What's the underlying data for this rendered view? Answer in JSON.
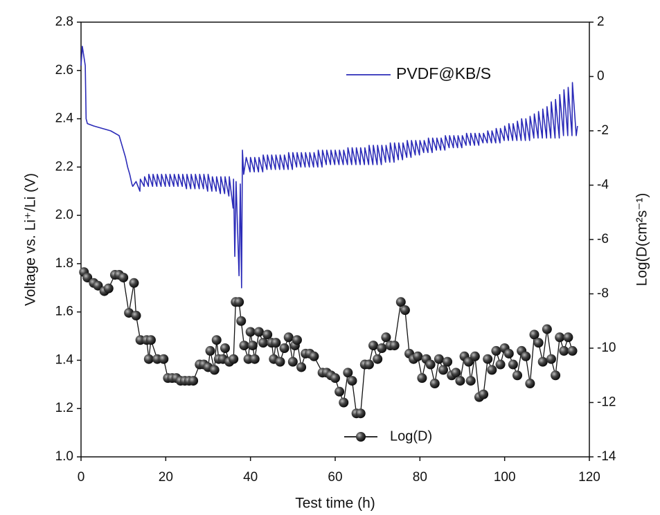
{
  "chart_data": {
    "type": "line",
    "xlabel": "Test time (h)",
    "ylabel": "Voltage vs. Li⁺/Li (V)",
    "y2label": "Log(D(cm²s⁻¹)",
    "xlim": [
      0,
      120
    ],
    "xticks": [
      0,
      20,
      40,
      60,
      80,
      100,
      120
    ],
    "ylim": [
      1,
      2.8
    ],
    "yticks": [
      {
        "value": 1,
        "label": "1.0"
      },
      1.2,
      1.4,
      1.6,
      1.8,
      {
        "value": 2,
        "label": "2.0"
      },
      2.2,
      2.4,
      2.6,
      2.8
    ],
    "y2lim": [
      -14,
      2
    ],
    "y2ticks": [
      2,
      0,
      -2,
      -4,
      -6,
      -8,
      -10,
      -12,
      -14
    ],
    "grid": false,
    "series": [
      {
        "name": "PVDF@KB/S",
        "color": "#2b2bb8",
        "marker": "none",
        "x": [
          0,
          0.3,
          1.0,
          1.2,
          1.5,
          3,
          5,
          7,
          9,
          9.5,
          10.5,
          11,
          11.5,
          12,
          12.2,
          13,
          13.9,
          14,
          14.9,
          15,
          15.9,
          16,
          16.9,
          17,
          17.9,
          18,
          18.9,
          19,
          19.9,
          20,
          20.9,
          21,
          21.9,
          22,
          22.9,
          23,
          23.9,
          24,
          24.9,
          25,
          25.9,
          26,
          26.9,
          27,
          27.9,
          28,
          28.9,
          29,
          29.9,
          30,
          30.9,
          31,
          31.9,
          32,
          32.9,
          33,
          33.9,
          34,
          34.9,
          35,
          35.9,
          36,
          36.3,
          36.6,
          37.3,
          37.6,
          37.9,
          38.1,
          38.4,
          39,
          39.9,
          40,
          40.9,
          41,
          41.9,
          42,
          42.9,
          43,
          43.9,
          44,
          44.9,
          45,
          45.9,
          46,
          46.9,
          47,
          47.9,
          48,
          48.9,
          49,
          49.9,
          50,
          50.9,
          51,
          51.9,
          52,
          52.9,
          53,
          53.9,
          54,
          54.9,
          55,
          55.9,
          56,
          56.9,
          57,
          57.9,
          58,
          58.9,
          59,
          59.9,
          60,
          60.9,
          61,
          61.9,
          62,
          62.9,
          63,
          63.9,
          64,
          64.9,
          65,
          65.9,
          66,
          66.9,
          67,
          67.9,
          68,
          68.9,
          69,
          69.9,
          70,
          70.9,
          71,
          71.9,
          72,
          72.9,
          73,
          73.9,
          74,
          74.9,
          75,
          75.9,
          76,
          76.9,
          77,
          77.9,
          78,
          78.9,
          79,
          79.9,
          80,
          80.9,
          81,
          81.9,
          82,
          82.9,
          83,
          83.9,
          84,
          84.9,
          85,
          85.9,
          86,
          86.9,
          87,
          87.9,
          88,
          88.9,
          89,
          89.9,
          90,
          90.9,
          91,
          91.9,
          92,
          92.9,
          93,
          93.9,
          94,
          94.9,
          95,
          95.9,
          96,
          96.9,
          97,
          97.9,
          98,
          98.9,
          99,
          99.9,
          100,
          100.9,
          101,
          101.9,
          102,
          102.9,
          103,
          103.9,
          104,
          104.9,
          105,
          105.9,
          106,
          106.9,
          107,
          107.9,
          108,
          108.9,
          109,
          109.9,
          110,
          110.9,
          111,
          111.9,
          112,
          112.9,
          113,
          113.9,
          114,
          114.9,
          115,
          115.9,
          116,
          116.9,
          117.2
        ],
        "values": [
          2.62,
          2.7,
          2.62,
          2.4,
          2.38,
          2.37,
          2.36,
          2.35,
          2.33,
          2.3,
          2.24,
          2.2,
          2.17,
          2.13,
          2.12,
          2.14,
          2.1,
          2.15,
          2.12,
          2.16,
          2.12,
          2.17,
          2.12,
          2.17,
          2.12,
          2.17,
          2.12,
          2.17,
          2.12,
          2.17,
          2.12,
          2.17,
          2.12,
          2.17,
          2.12,
          2.17,
          2.12,
          2.17,
          2.11,
          2.17,
          2.11,
          2.17,
          2.11,
          2.17,
          2.11,
          2.17,
          2.11,
          2.17,
          2.1,
          2.17,
          2.1,
          2.16,
          2.1,
          2.16,
          2.09,
          2.16,
          2.09,
          2.16,
          2.08,
          2.16,
          2.03,
          2.15,
          1.83,
          2.14,
          1.75,
          2.13,
          1.7,
          2.27,
          2.17,
          2.24,
          2.18,
          2.24,
          2.18,
          2.24,
          2.18,
          2.24,
          2.18,
          2.25,
          2.19,
          2.25,
          2.19,
          2.25,
          2.19,
          2.25,
          2.19,
          2.25,
          2.19,
          2.25,
          2.19,
          2.26,
          2.19,
          2.26,
          2.2,
          2.26,
          2.2,
          2.26,
          2.2,
          2.26,
          2.2,
          2.26,
          2.2,
          2.26,
          2.2,
          2.27,
          2.2,
          2.27,
          2.21,
          2.27,
          2.21,
          2.27,
          2.21,
          2.27,
          2.21,
          2.27,
          2.21,
          2.27,
          2.21,
          2.28,
          2.21,
          2.28,
          2.21,
          2.28,
          2.21,
          2.28,
          2.21,
          2.28,
          2.21,
          2.29,
          2.21,
          2.29,
          2.21,
          2.29,
          2.21,
          2.29,
          2.22,
          2.29,
          2.22,
          2.3,
          2.22,
          2.3,
          2.23,
          2.3,
          2.23,
          2.3,
          2.24,
          2.31,
          2.24,
          2.31,
          2.25,
          2.31,
          2.25,
          2.31,
          2.26,
          2.31,
          2.26,
          2.32,
          2.26,
          2.32,
          2.27,
          2.32,
          2.27,
          2.32,
          2.27,
          2.33,
          2.28,
          2.33,
          2.28,
          2.33,
          2.28,
          2.33,
          2.28,
          2.33,
          2.29,
          2.34,
          2.29,
          2.34,
          2.29,
          2.34,
          2.29,
          2.34,
          2.3,
          2.34,
          2.3,
          2.35,
          2.3,
          2.35,
          2.3,
          2.36,
          2.3,
          2.36,
          2.31,
          2.37,
          2.31,
          2.38,
          2.31,
          2.38,
          2.31,
          2.39,
          2.31,
          2.4,
          2.31,
          2.4,
          2.31,
          2.41,
          2.32,
          2.42,
          2.32,
          2.43,
          2.32,
          2.44,
          2.32,
          2.45,
          2.32,
          2.47,
          2.32,
          2.48,
          2.32,
          2.5,
          2.33,
          2.52,
          2.33,
          2.53,
          2.33,
          2.55,
          2.33,
          2.37
        ]
      },
      {
        "name": "Log(D)",
        "color": "#111111",
        "marker": "sphere",
        "axis": "y2",
        "x": [
          0.7,
          1.5,
          3,
          4,
          5.5,
          6.5,
          8,
          9,
          10,
          11.3,
          12.5,
          13,
          14,
          15.5,
          16,
          16.5,
          18,
          19.5,
          20.5,
          21.5,
          22.5,
          23.5,
          24.5,
          25.5,
          26.5,
          28,
          29,
          30,
          30.5,
          31.5,
          32,
          32.5,
          33.5,
          34,
          35,
          36,
          36.5,
          37.3,
          37.8,
          38.5,
          39.5,
          40,
          40.5,
          41,
          42,
          43,
          44,
          45,
          45.5,
          46,
          47,
          48,
          49,
          50,
          50.5,
          51,
          52,
          53,
          54,
          55,
          57,
          58,
          59,
          60,
          61,
          62,
          63,
          64,
          65,
          66,
          67,
          68,
          69,
          70,
          71,
          72,
          73,
          74,
          75.5,
          76.5,
          77.5,
          78.5,
          79.5,
          80.5,
          81.5,
          82.5,
          83.5,
          84.5,
          85.5,
          86.5,
          87.5,
          88.5,
          89.5,
          90.5,
          91.5,
          92,
          93,
          94,
          95,
          96,
          97,
          98,
          99,
          100,
          101,
          102,
          103,
          104,
          105,
          106,
          107,
          108,
          109,
          110,
          111,
          112,
          113,
          114,
          115,
          116
        ],
        "values": [
          -7.2,
          -7.4,
          -7.6,
          -7.7,
          -7.9,
          -7.8,
          -7.3,
          -7.3,
          -7.4,
          -8.7,
          -7.6,
          -8.8,
          -9.7,
          -9.7,
          -10.4,
          -9.7,
          -10.4,
          -10.4,
          -11.1,
          -11.1,
          -11.1,
          -11.2,
          -11.2,
          -11.2,
          -11.2,
          -10.6,
          -10.6,
          -10.7,
          -10.1,
          -10.8,
          -9.7,
          -10.4,
          -10.4,
          -10.0,
          -10.5,
          -10.4,
          -8.3,
          -8.3,
          -9.0,
          -9.9,
          -10.4,
          -9.4,
          -9.9,
          -10.4,
          -9.4,
          -9.8,
          -9.5,
          -9.8,
          -10.4,
          -9.8,
          -10.5,
          -10.0,
          -9.6,
          -10.5,
          -9.9,
          -9.7,
          -10.7,
          -10.2,
          -10.2,
          -10.3,
          -10.9,
          -10.9,
          -11.0,
          -11.1,
          -11.6,
          -12.0,
          -10.9,
          -11.2,
          -12.4,
          -12.4,
          -10.6,
          -10.6,
          -9.9,
          -10.4,
          -10.0,
          -9.6,
          -9.9,
          -9.9,
          -8.3,
          -8.6,
          -10.2,
          -10.4,
          -10.3,
          -11.1,
          -10.4,
          -10.6,
          -11.3,
          -10.4,
          -10.8,
          -10.5,
          -11.0,
          -10.9,
          -11.2,
          -10.3,
          -10.5,
          -11.2,
          -10.3,
          -11.8,
          -11.7,
          -10.4,
          -10.8,
          -10.1,
          -10.6,
          -10.0,
          -10.2,
          -10.6,
          -11.0,
          -10.1,
          -10.3,
          -11.3,
          -9.5,
          -9.8,
          -10.5,
          -9.3,
          -10.4,
          -11.0,
          -9.6,
          -10.1,
          -9.6,
          -10.1
        ]
      }
    ]
  }
}
